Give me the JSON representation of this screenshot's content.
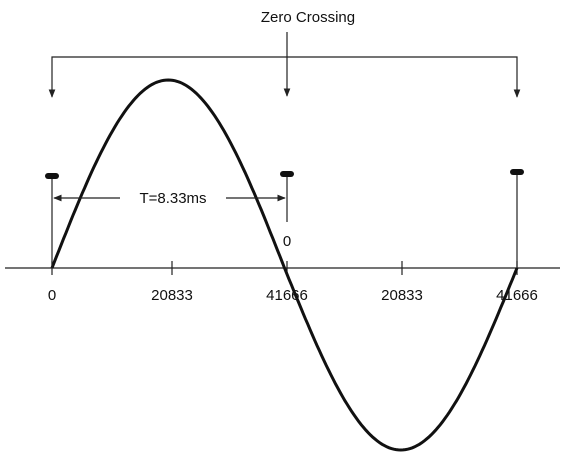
{
  "title": "Zero Crossing",
  "period_label": "T=8.33ms",
  "marker_label": "0",
  "axis_labels": [
    "0",
    "20833",
    "41666",
    "20833",
    "41666"
  ]
}
